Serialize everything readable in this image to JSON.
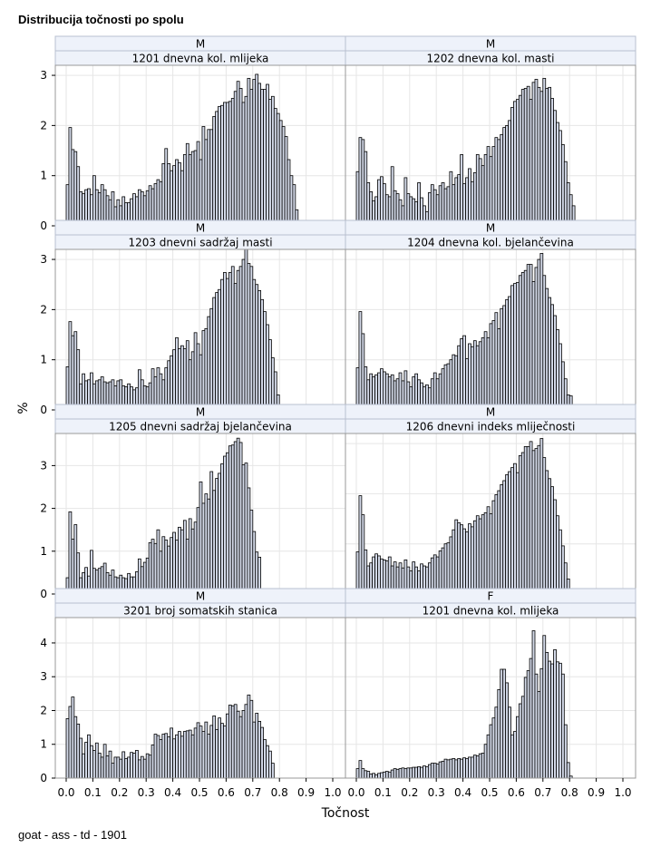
{
  "title": "Distribucija točnosti po spolu",
  "footnote": "goat - ass - td - 1901",
  "colors": {
    "bar_fill": "#d3d9e8",
    "bar_stroke": "#000000",
    "grid": "#e6e6e6",
    "header_fill": "#eef2fa",
    "frame": "#999999"
  },
  "chart_data": {
    "type": "histogram-panel",
    "xlabel": "Točnost",
    "ylabel": "%",
    "grid": true,
    "x_ticks": [
      "0.0",
      "0.1",
      "0.2",
      "0.3",
      "0.4",
      "0.5",
      "0.6",
      "0.7",
      "0.8",
      "0.9",
      "1.0"
    ],
    "bin_width": 0.01,
    "bin_start": 0.0,
    "panels": [
      {
        "row_header": "M",
        "col_header": "1201 dnevna kol. mlijeka",
        "y_ticks": [
          "0",
          "1",
          "2",
          "3"
        ],
        "ylim": [
          0,
          3.2
        ],
        "values": [
          0.82,
          1.96,
          1.52,
          1.48,
          1.18,
          0.68,
          0.64,
          0.72,
          0.74,
          0.62,
          1.0,
          0.72,
          0.66,
          0.82,
          0.72,
          0.6,
          0.52,
          0.68,
          0.38,
          0.52,
          0.4,
          0.58,
          0.46,
          0.46,
          0.54,
          0.64,
          0.58,
          0.72,
          0.68,
          0.6,
          0.7,
          0.8,
          0.74,
          0.84,
          0.92,
          0.88,
          1.24,
          1.54,
          1.24,
          1.1,
          1.2,
          1.32,
          1.26,
          1.1,
          1.42,
          1.64,
          1.42,
          1.48,
          1.5,
          1.68,
          1.32,
          1.98,
          1.72,
          1.92,
          1.92,
          2.18,
          2.28,
          2.38,
          2.4,
          2.46,
          2.46,
          2.48,
          2.54,
          2.68,
          2.88,
          2.74,
          2.46,
          2.58,
          2.94,
          2.72,
          2.92,
          3.02,
          2.84,
          2.72,
          2.72,
          2.82,
          2.52,
          2.58,
          2.34,
          2.24,
          2.1,
          1.98,
          1.78,
          1.32,
          1.0,
          0.82,
          0.32
        ]
      },
      {
        "row_header": "M",
        "col_header": "1202 dnevna kol. masti",
        "y_ticks": [
          "0",
          "1",
          "2",
          "3"
        ],
        "ylim": [
          0,
          3.2
        ],
        "values": [
          1.08,
          1.76,
          1.72,
          1.48,
          0.86,
          0.68,
          0.5,
          0.58,
          0.92,
          0.98,
          0.84,
          0.62,
          0.58,
          1.18,
          0.7,
          0.64,
          0.52,
          0.4,
          0.96,
          0.64,
          0.58,
          0.54,
          0.48,
          0.86,
          0.56,
          0.4,
          0.28,
          0.66,
          0.82,
          0.72,
          0.62,
          0.8,
          0.86,
          0.74,
          0.78,
          1.08,
          0.82,
          0.96,
          1.02,
          1.42,
          0.84,
          0.96,
          1.14,
          0.88,
          1.06,
          1.42,
          1.34,
          1.2,
          1.42,
          1.58,
          1.38,
          1.58,
          1.76,
          1.72,
          1.82,
          1.96,
          2.0,
          2.1,
          2.36,
          2.48,
          2.52,
          2.6,
          2.72,
          2.74,
          2.78,
          2.52,
          2.86,
          2.92,
          2.76,
          2.68,
          2.94,
          2.74,
          2.76,
          2.54,
          2.3,
          2.06,
          1.9,
          1.62,
          1.28,
          0.86,
          0.62,
          0.4
        ]
      },
      {
        "row_header": "M",
        "col_header": "1203 dnevni sadržaj masti",
        "y_ticks": [
          "0",
          "1",
          "2",
          "3"
        ],
        "ylim": [
          0,
          3.2
        ],
        "values": [
          0.86,
          1.76,
          1.48,
          1.56,
          1.2,
          0.52,
          0.72,
          0.58,
          0.6,
          0.74,
          0.52,
          0.58,
          0.6,
          0.66,
          0.56,
          0.54,
          0.56,
          0.6,
          0.48,
          0.58,
          0.6,
          0.48,
          0.46,
          0.52,
          0.46,
          0.4,
          0.44,
          0.8,
          0.6,
          0.48,
          0.46,
          0.54,
          0.82,
          0.66,
          0.84,
          0.72,
          0.6,
          0.84,
          0.98,
          1.08,
          1.2,
          1.44,
          1.22,
          1.28,
          1.22,
          1.38,
          1.0,
          1.16,
          1.54,
          1.32,
          1.1,
          1.58,
          1.62,
          1.86,
          2.02,
          2.24,
          2.34,
          2.4,
          2.6,
          2.74,
          2.62,
          2.74,
          2.86,
          2.52,
          2.78,
          2.86,
          3.0,
          3.26,
          2.92,
          2.86,
          2.6,
          2.5,
          2.38,
          2.2,
          1.96,
          1.7,
          1.4,
          1.04,
          0.76,
          0.3
        ]
      },
      {
        "row_header": "M",
        "col_header": "1204 dnevna kol. bjelančevina",
        "y_ticks": [
          "0",
          "1",
          "2",
          "3"
        ],
        "ylim": [
          0,
          3.2
        ],
        "values": [
          0.84,
          1.96,
          1.52,
          0.86,
          0.6,
          0.72,
          0.66,
          0.7,
          0.74,
          0.82,
          0.76,
          0.72,
          0.66,
          0.7,
          0.58,
          0.62,
          0.74,
          0.58,
          0.78,
          0.56,
          0.46,
          0.66,
          0.72,
          0.6,
          0.54,
          0.46,
          0.5,
          0.44,
          0.62,
          0.74,
          0.62,
          0.72,
          0.82,
          0.9,
          0.92,
          1.0,
          1.1,
          1.08,
          1.28,
          1.42,
          1.48,
          1.02,
          1.32,
          1.26,
          1.38,
          1.28,
          1.36,
          1.44,
          1.56,
          1.44,
          1.72,
          1.78,
          1.94,
          1.62,
          2.02,
          2.08,
          2.2,
          2.26,
          2.48,
          2.52,
          2.54,
          2.68,
          2.74,
          2.78,
          2.9,
          2.9,
          2.56,
          2.84,
          3.0,
          3.12,
          2.68,
          2.42,
          2.24,
          2.1,
          1.88,
          1.6,
          1.32,
          0.96,
          0.62,
          0.3,
          0.28
        ]
      },
      {
        "row_header": "M",
        "col_header": "1205 dnevni sadržaj bjelančevina",
        "y_ticks": [
          "0",
          "1",
          "2",
          "3"
        ],
        "ylim": [
          0,
          3.75
        ],
        "values": [
          0.38,
          1.92,
          1.28,
          1.62,
          0.96,
          0.38,
          0.5,
          0.62,
          0.42,
          1.02,
          0.6,
          0.56,
          0.6,
          0.64,
          0.72,
          0.5,
          0.44,
          0.56,
          0.4,
          0.38,
          0.44,
          0.38,
          0.36,
          0.48,
          0.4,
          0.4,
          0.52,
          0.82,
          0.64,
          0.74,
          0.84,
          1.2,
          1.28,
          1.18,
          1.5,
          1.0,
          1.34,
          1.26,
          1.12,
          1.32,
          1.44,
          1.26,
          1.56,
          1.5,
          1.72,
          1.28,
          1.76,
          1.52,
          1.68,
          2.02,
          2.62,
          2.12,
          2.34,
          2.22,
          2.86,
          2.42,
          2.7,
          2.82,
          3.04,
          3.22,
          3.3,
          3.46,
          3.48,
          3.56,
          3.64,
          3.54,
          3.02,
          3.06,
          2.48,
          1.96,
          1.46,
          0.98,
          0.86
        ]
      },
      {
        "row_header": "M",
        "col_header": "1206 dnevni indeks mliječnosti",
        "y_ticks": [
          "0",
          "1",
          "2",
          "3"
        ],
        "ylim": [
          0,
          3.2
        ],
        "values": [
          0.84,
          1.96,
          1.58,
          0.88,
          0.56,
          0.62,
          0.74,
          0.8,
          0.76,
          0.7,
          0.68,
          0.66,
          0.74,
          0.56,
          0.64,
          0.54,
          0.62,
          0.52,
          0.68,
          0.54,
          0.46,
          0.64,
          0.54,
          0.46,
          0.6,
          0.56,
          0.54,
          0.62,
          0.72,
          0.78,
          0.74,
          0.86,
          0.92,
          1.0,
          1.02,
          1.14,
          1.28,
          1.48,
          1.42,
          1.38,
          1.3,
          1.24,
          1.4,
          1.34,
          1.46,
          1.56,
          1.5,
          1.58,
          1.62,
          1.74,
          1.6,
          1.86,
          1.98,
          2.06,
          2.18,
          2.26,
          2.38,
          2.44,
          2.52,
          2.6,
          2.42,
          2.76,
          2.82,
          2.94,
          2.94,
          3.04,
          2.86,
          2.9,
          2.96,
          3.1,
          2.72,
          2.46,
          2.3,
          2.14,
          1.88,
          1.56,
          1.28,
          0.96,
          0.62,
          0.3
        ]
      },
      {
        "row_header": "M",
        "col_header": "3201 broj somatskih stanica",
        "y_ticks": [
          "0",
          "1",
          "2",
          "3",
          "4"
        ],
        "ylim": [
          0,
          4.75
        ],
        "values": [
          1.76,
          2.12,
          2.4,
          1.82,
          1.6,
          1.18,
          0.72,
          1.06,
          1.28,
          0.96,
          0.82,
          1.04,
          0.74,
          0.62,
          1.0,
          0.66,
          0.8,
          0.44,
          0.62,
          0.62,
          0.56,
          0.78,
          0.58,
          0.62,
          0.76,
          0.74,
          0.82,
          0.54,
          0.64,
          0.56,
          0.72,
          0.68,
          0.98,
          1.3,
          1.26,
          1.14,
          1.3,
          1.32,
          1.22,
          1.48,
          1.16,
          1.28,
          1.38,
          1.24,
          1.38,
          1.4,
          1.42,
          1.28,
          1.48,
          1.64,
          1.54,
          1.38,
          1.66,
          1.3,
          1.56,
          1.84,
          1.44,
          1.78,
          1.62,
          1.54,
          1.9,
          2.16,
          2.14,
          2.18,
          1.98,
          1.82,
          2.0,
          2.18,
          2.46,
          2.3,
          1.66,
          1.92,
          1.68,
          1.5,
          1.14,
          0.96,
          0.8,
          0.44
        ]
      },
      {
        "row_header": "F",
        "col_header": "1201 dnevna kol. mlijeka",
        "y_ticks": [
          "0",
          "1",
          "2",
          "3",
          "4"
        ],
        "ylim": [
          0,
          4.75
        ],
        "values": [
          0.28,
          0.52,
          0.28,
          0.22,
          0.2,
          0.12,
          0.14,
          0.1,
          0.14,
          0.16,
          0.18,
          0.2,
          0.18,
          0.24,
          0.28,
          0.26,
          0.28,
          0.3,
          0.28,
          0.3,
          0.3,
          0.32,
          0.32,
          0.34,
          0.32,
          0.36,
          0.34,
          0.4,
          0.44,
          0.44,
          0.42,
          0.48,
          0.5,
          0.56,
          0.54,
          0.56,
          0.58,
          0.54,
          0.58,
          0.56,
          0.6,
          0.58,
          0.62,
          0.62,
          0.68,
          0.66,
          0.72,
          0.74,
          1.0,
          1.28,
          1.58,
          1.78,
          2.1,
          2.62,
          3.22,
          3.22,
          2.82,
          2.1,
          1.28,
          1.38,
          1.82,
          2.2,
          2.42,
          2.98,
          3.18,
          3.54,
          4.36,
          3.08,
          2.56,
          3.24,
          4.22,
          3.72,
          3.46,
          3.38,
          3.8,
          3.44,
          3.4,
          3.08,
          1.58,
          0.46,
          0.06
        ]
      }
    ]
  }
}
